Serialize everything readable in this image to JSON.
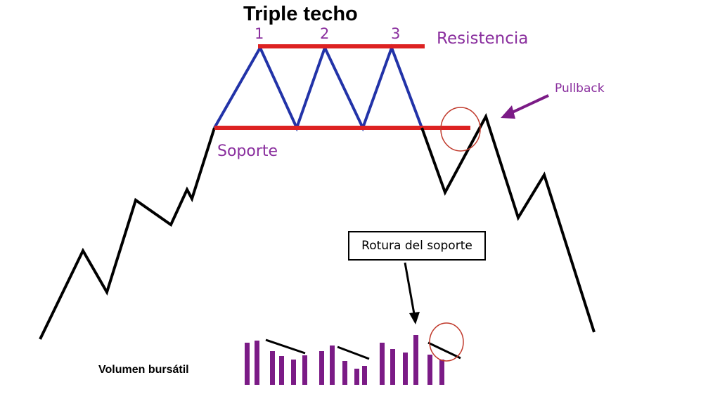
{
  "title": "Triple techo",
  "peaks": [
    "1",
    "2",
    "3"
  ],
  "labels": {
    "resistance": "Resistencia",
    "support": "Soporte",
    "pullback": "Pullback",
    "support_break": "Rotura del soporte",
    "volume": "Volumen bursátil"
  },
  "colors": {
    "price_line": "#000000",
    "pattern_line": "#2233a8",
    "level_line": "#dd2222",
    "label_text": "#8a2f9e",
    "volume_bar": "#7b1b86",
    "circle": "#c0392b"
  },
  "icons": [
    "arrow-down-icon",
    "arrow-left-purple-icon",
    "highlight-circle-icon"
  ]
}
